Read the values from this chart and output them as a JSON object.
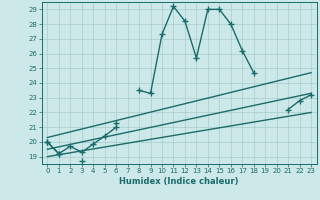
{
  "xlabel": "Humidex (Indice chaleur)",
  "ylabel": "",
  "bg_color": "#cce8e8",
  "grid_color": "#aacccc",
  "line_color": "#1a6b6b",
  "xlim": [
    -0.5,
    23.5
  ],
  "ylim": [
    18.5,
    29.5
  ],
  "yticks": [
    19,
    20,
    21,
    22,
    23,
    24,
    25,
    26,
    27,
    28,
    29
  ],
  "xticks": [
    0,
    1,
    2,
    3,
    4,
    5,
    6,
    7,
    8,
    9,
    10,
    11,
    12,
    13,
    14,
    15,
    16,
    17,
    18,
    19,
    20,
    21,
    22,
    23
  ],
  "series": [
    {
      "x": [
        0,
        1,
        2,
        3,
        4,
        5,
        6,
        7,
        8,
        9,
        10,
        11,
        12,
        13,
        14,
        15,
        16,
        17,
        18,
        19,
        20,
        21,
        22,
        23
      ],
      "y": [
        20.0,
        19.2,
        null,
        18.7,
        null,
        null,
        21.3,
        null,
        23.5,
        23.3,
        27.3,
        29.2,
        28.2,
        25.7,
        29.0,
        29.0,
        28.0,
        26.2,
        24.7,
        null,
        null,
        22.2,
        22.8,
        23.2
      ],
      "marker": "+",
      "markersize": 4,
      "linewidth": 1.0
    },
    {
      "x": [
        0,
        1,
        2,
        3,
        4,
        5,
        6
      ],
      "y": [
        20.0,
        19.2,
        19.7,
        19.3,
        19.85,
        20.4,
        21.0
      ],
      "marker": "+",
      "markersize": 4,
      "linewidth": 1.0
    },
    {
      "x": [
        0,
        23
      ],
      "y": [
        19.5,
        23.3
      ],
      "marker": null,
      "markersize": 0,
      "linewidth": 1.0
    },
    {
      "x": [
        0,
        23
      ],
      "y": [
        19.0,
        22.0
      ],
      "marker": null,
      "markersize": 0,
      "linewidth": 1.0
    },
    {
      "x": [
        0,
        23
      ],
      "y": [
        20.3,
        24.7
      ],
      "marker": null,
      "markersize": 0,
      "linewidth": 1.0
    }
  ]
}
